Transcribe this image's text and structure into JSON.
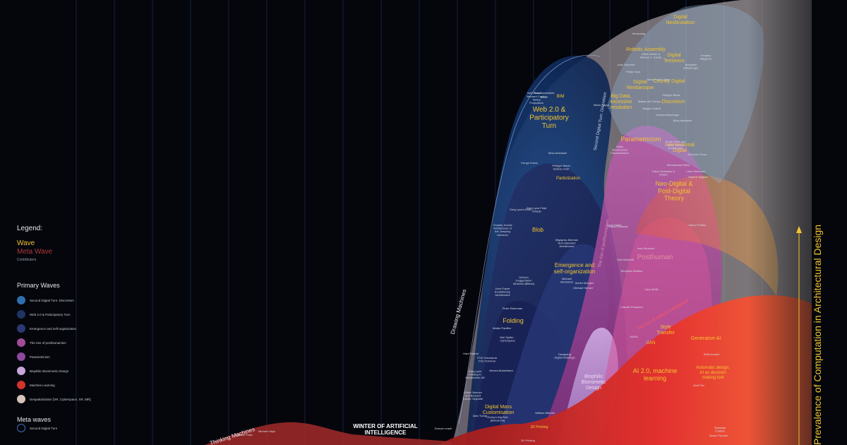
{
  "legend": {
    "title": "Legend:",
    "wave": "Wave",
    "meta_wave": "Meta Wave",
    "contributors": "Contributors",
    "primary_title": "Primary Waves",
    "primary_waves": [
      {
        "label": "Second Digital Turn: Discretism",
        "color": "#2f6fb0"
      },
      {
        "label": "Web 2.0 & Participatory Turn",
        "color": "#1e3563"
      },
      {
        "label": "Emergence and self-organization",
        "color": "#2c3872"
      },
      {
        "label": "The rise of posthumanism",
        "color": "#a24b97"
      },
      {
        "label": "Parametricism",
        "color": "#8e48a0"
      },
      {
        "label": "Biophilic Biomimetic Design",
        "color": "#c8a6d8"
      },
      {
        "label": "Machine Learning",
        "color": "#d2332b"
      },
      {
        "label": "Despatialization [VR, Cyberspace, XR, MR]",
        "color": "#d6c4bc"
      }
    ],
    "meta_title": "Meta waves",
    "meta_waves": [
      {
        "label": "Second Digital Turn",
        "color": "#3c6fb5"
      }
    ]
  },
  "colors": {
    "background": "#04060c",
    "blue_wave": "#1b3f7a",
    "navy_wave": "#1f2b63",
    "magenta_wave": "#b0479c",
    "lilac_wave": "#c7a4dc",
    "red_wave": "#d02a22",
    "bone_wave": "#e6d4cf",
    "accent_yellow": "#f3c430",
    "gridline": "#16213a"
  },
  "axis": {
    "y_title": "Prevalence of Computation in Architectural Design"
  },
  "chart_data": {
    "type": "area",
    "title": "",
    "xlabel": "",
    "ylabel": "Prevalence of Computation in Architectural Design",
    "grid": true,
    "legend_position": "left",
    "annotations": [
      {
        "text": "Thinking Machines",
        "kind": "meta"
      },
      {
        "text": "WINTER OF ARTIFICIAL INTELLIGENCE",
        "kind": "period"
      },
      {
        "text": "Drawing Machines",
        "kind": "meta"
      },
      {
        "text": "Second Digital Turn: Discretism",
        "kind": "meta"
      },
      {
        "text": "The rise of posthumanism",
        "kind": "meta"
      },
      {
        "text": "The rise of artificial intelligence",
        "kind": "meta"
      }
    ],
    "waves": [
      {
        "name": "Web 2.0 & Participatory Turn"
      },
      {
        "name": "Blob"
      },
      {
        "name": "Folding"
      },
      {
        "name": "Emergence and self-organization"
      },
      {
        "name": "Parametricism"
      },
      {
        "name": "Neo-Digital & Post-Digital Theory"
      },
      {
        "name": "Posthuman"
      },
      {
        "name": "Biophilic Biomimetic Design"
      },
      {
        "name": "AI 2.0, machine learning"
      },
      {
        "name": "Digital Mass Customisation"
      },
      {
        "name": "Digital Neobrutalism"
      },
      {
        "name": "Robotic Assembly"
      },
      {
        "name": "Digital Tectonics"
      },
      {
        "name": "Chunky Digital"
      },
      {
        "name": "Digital Neobaroque"
      },
      {
        "name": "Discretism"
      },
      {
        "name": "Big Data, excessive resolution"
      },
      {
        "name": "Intersectional Digital"
      },
      {
        "name": "Particlization"
      },
      {
        "name": "Style Transfer"
      },
      {
        "name": "GAN"
      },
      {
        "name": "Generative AI"
      },
      {
        "name": "Automatic design, AI as decision making tool"
      },
      {
        "name": "BIM"
      },
      {
        "name": "3D Printing"
      }
    ],
    "contributors": [
      {
        "text": "Mario Carpo"
      },
      {
        "text": "Greg Lynn's Blob"
      },
      {
        "text": "Gehry's Guggenheim Museum [Bilbao]"
      },
      {
        "text": "John Frazer Evolutionary Architecture"
      },
      {
        "text": "Peter Eisenman"
      },
      {
        "text": "Walter Pauffen"
      },
      {
        "text": "Neil Spiller - Cyberspace"
      },
      {
        "text": "Hani Rashid"
      },
      {
        "text": "FOA Yokohama Port Terminal"
      },
      {
        "text": "Greg Lynn Folding in Architecture AD"
      },
      {
        "text": "Menna Bubbeldam"
      },
      {
        "text": "Gilles Deleuze and Bernard Cache Objectile"
      },
      {
        "text": "Charles Jencks Architecture of the Jumping Universe"
      },
      {
        "text": "Greg Lynn Fetal Tetrads"
      },
      {
        "text": "Migayrou-Mennan Non-Standard Architecture"
      },
      {
        "text": "Michael Weinstock"
      },
      {
        "text": "Achim Menges"
      },
      {
        "text": "Michael Hensel"
      },
      {
        "text": "Kengo Kuma"
      },
      {
        "text": "Philippe Morel Bolivar chair"
      },
      {
        "text": "Alisa Andrasek"
      },
      {
        "text": "Patrik Schumacher Parametricism"
      },
      {
        "text": "Zaha Hadid"
      },
      {
        "text": "Bernard Cache Tables Projectives"
      },
      {
        "text": "Neil Denari"
      },
      {
        "text": "Rod Sunderfield"
      },
      {
        "text": "SHoP"
      },
      {
        "text": "Versioning"
      },
      {
        "text": "Gilles Retsin & Manuel J. Garcia"
      },
      {
        "text": "Jose Sanchez"
      },
      {
        "text": "Mark Foster Gage"
      },
      {
        "text": "Benjamin Dillenburger"
      },
      {
        "text": "Philippe Block"
      },
      {
        "text": "Matias del Campo"
      },
      {
        "text": "Marjan Colletti"
      },
      {
        "text": "Sandra Manninger"
      },
      {
        "text": "Alisa Andrasek"
      },
      {
        "text": "Small Cities and Open Source Architecture"
      },
      {
        "text": "Mohammad Edrisi"
      },
      {
        "text": "Antonino Picon"
      },
      {
        "text": "Ledo Wuthman"
      },
      {
        "text": "Martha Tsigkari"
      },
      {
        "text": "Leon Brosuch"
      },
      {
        "text": "Rosi Braidotti"
      },
      {
        "text": "Benjamin Bratton"
      },
      {
        "text": "Donna Haraway"
      },
      {
        "text": "Cary Wolfe"
      },
      {
        "text": "Claudia Pasquero"
      },
      {
        "text": "Marco Poletto"
      },
      {
        "text": "NASA"
      },
      {
        "text": "Refik Anadol"
      },
      {
        "text": "Wolf Prix"
      },
      {
        "text": "Stanislas Chaillou"
      },
      {
        "text": "Space Popular"
      },
      {
        "text": "3D Printing"
      },
      {
        "text": "Michael Hays"
      },
      {
        "text": "Gordon Pask"
      },
      {
        "text": "Alan Turing"
      },
      {
        "text": "Gehry's Big Fish [Barcelona]"
      },
      {
        "text": "William Mitchell"
      },
      {
        "text": "Dotcom crash"
      },
      {
        "text": "Designing Digital Drawings"
      },
      {
        "text": "Fabio Gramazio & Kohler"
      },
      {
        "text": "Frederic Migayrou"
      },
      {
        "text": "Philip Yuan"
      },
      {
        "text": "Achim Menges & Jan Knippers"
      }
    ]
  }
}
